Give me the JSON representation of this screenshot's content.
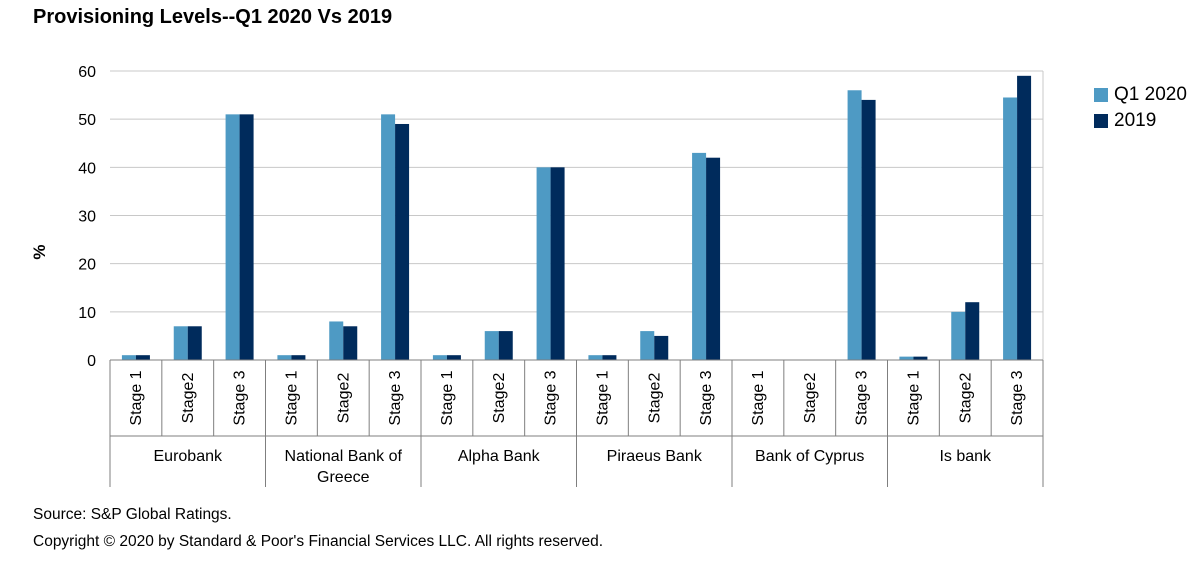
{
  "chart_data": {
    "type": "bar",
    "title": "Provisioning Levels--Q1 2020 Vs 2019",
    "ylabel": "%",
    "xlabel": "",
    "ylim": [
      0,
      60
    ],
    "yticks": [
      0,
      10,
      20,
      30,
      40,
      50,
      60
    ],
    "grid": true,
    "legend_position": "right",
    "groups": [
      {
        "name": "Eurobank",
        "categories": [
          "Stage 1",
          "Stage2",
          "Stage 3"
        ]
      },
      {
        "name": "National Bank of Greece",
        "categories": [
          "Stage 1",
          "Stage2",
          "Stage 3"
        ]
      },
      {
        "name": "Alpha Bank",
        "categories": [
          "Stage 1",
          "Stage2",
          "Stage 3"
        ]
      },
      {
        "name": "Piraeus Bank",
        "categories": [
          "Stage 1",
          "Stage2",
          "Stage 3"
        ]
      },
      {
        "name": "Bank of Cyprus",
        "categories": [
          "Stage 1",
          "Stage2",
          "Stage 3"
        ]
      },
      {
        "name": "Is bank",
        "categories": [
          "Stage 1",
          "Stage2",
          "Stage 3"
        ]
      }
    ],
    "series": [
      {
        "name": "Q1 2020",
        "color": "#4e9ac4",
        "values": [
          1,
          7,
          51,
          1,
          8,
          51,
          1,
          6,
          40,
          1,
          6,
          43,
          0,
          0,
          56,
          0.7,
          10,
          54.5
        ]
      },
      {
        "name": "2019",
        "color": "#002b5c",
        "values": [
          1,
          7,
          51,
          1,
          7,
          49,
          1,
          6,
          40,
          1,
          5,
          42,
          0,
          0,
          54,
          0.7,
          12,
          59
        ]
      }
    ]
  },
  "footer": {
    "source": "Source: S&P Global Ratings.",
    "copyright": "Copyright © 2020 by Standard & Poor's Financial Services LLC. All rights reserved."
  }
}
